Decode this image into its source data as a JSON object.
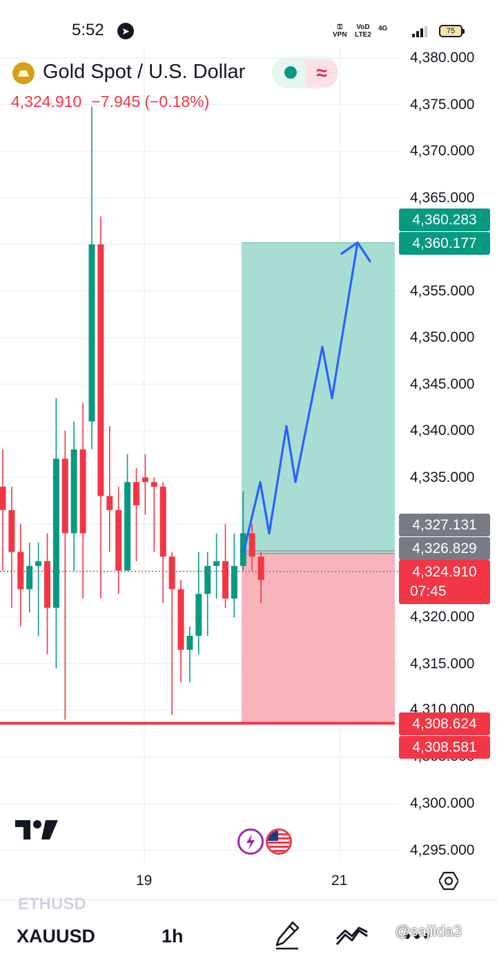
{
  "status_bar": {
    "time": "5:52",
    "indicators": [
      "VPN",
      "VoD LTE2",
      "4G"
    ],
    "battery": "75",
    "icons": [
      "telegram-icon",
      "vpn-key-icon",
      "signal-icon",
      "battery-icon"
    ]
  },
  "header": {
    "title": "Gold Spot / U.S. Dollar",
    "price": "4,324.910",
    "change": "−7.945",
    "change_pct": "(−0.18%)",
    "status_icons": [
      "market-open-dot-icon",
      "delayed-data-wave-icon"
    ]
  },
  "colors": {
    "up": "#089981",
    "down": "#f23645",
    "profit_zone": "#a8ddd4",
    "loss_zone": "#f7b5bb",
    "projection": "#2962ff",
    "gray_label": "#787b86"
  },
  "price_axis": {
    "ticks": [
      "4,380.000",
      "4,375.000",
      "4,370.000",
      "4,365.000",
      "4,355.000",
      "4,350.000",
      "4,345.000",
      "4,340.000",
      "4,335.000",
      "4,320.000",
      "4,315.000",
      "4,300.000",
      "4,295.000"
    ],
    "partial_ticks": [
      "4,310.000",
      "4,305.000"
    ]
  },
  "price_labels": {
    "target_1": "4,360.283",
    "target_2": "4,360.177",
    "entry_1": "4,327.131",
    "entry_2": "4,326.829",
    "last_price": "4,324.910",
    "countdown": "07:45",
    "stop_1": "4,308.624",
    "stop_2": "4,308.581"
  },
  "time_axis": {
    "labels": [
      "19",
      "21"
    ]
  },
  "bottom_bar": {
    "previous_symbol": "ETHUSD",
    "symbol": "XAUUSD",
    "interval": "1h",
    "tools": [
      "draw-pen-icon",
      "indicators-icon",
      "more-icon"
    ],
    "watermark": "@sajiida3"
  },
  "chart_data": {
    "type": "candlestick",
    "symbol": "XAUUSD",
    "interval": "1h",
    "ylim": [
      4292.5,
      4383.0
    ],
    "x_labels": [
      "19",
      "21"
    ],
    "candles": [
      {
        "o": 4334.0,
        "h": 4338.0,
        "l": 4325.0,
        "c": 4331.5
      },
      {
        "o": 4331.5,
        "h": 4334.0,
        "l": 4321.0,
        "c": 4327.0
      },
      {
        "o": 4327.0,
        "h": 4330.0,
        "l": 4319.0,
        "c": 4323.0
      },
      {
        "o": 4323.0,
        "h": 4328.0,
        "l": 4320.5,
        "c": 4325.5
      },
      {
        "o": 4325.5,
        "h": 4328.0,
        "l": 4318.0,
        "c": 4326.0
      },
      {
        "o": 4326.0,
        "h": 4329.0,
        "l": 4316.0,
        "c": 4321.0
      },
      {
        "o": 4321.0,
        "h": 4343.5,
        "l": 4314.5,
        "c": 4337.0
      },
      {
        "o": 4337.0,
        "h": 4340.0,
        "l": 4309.0,
        "c": 4329.0
      },
      {
        "o": 4329.0,
        "h": 4341.0,
        "l": 4325.0,
        "c": 4338.0
      },
      {
        "o": 4338.0,
        "h": 4343.0,
        "l": 4322.0,
        "c": 4329.0
      },
      {
        "o": 4341.0,
        "h": 4374.8,
        "l": 4338.0,
        "c": 4360.0
      },
      {
        "o": 4360.0,
        "h": 4363.0,
        "l": 4322.0,
        "c": 4333.0
      },
      {
        "o": 4333.0,
        "h": 4340.5,
        "l": 4327.0,
        "c": 4331.5
      },
      {
        "o": 4331.5,
        "h": 4334.0,
        "l": 4322.5,
        "c": 4325.0
      },
      {
        "o": 4325.0,
        "h": 4337.5,
        "l": 4325.0,
        "c": 4334.5
      },
      {
        "o": 4334.5,
        "h": 4336.0,
        "l": 4326.0,
        "c": 4332.0
      },
      {
        "o": 4335.0,
        "h": 4337.5,
        "l": 4331.0,
        "c": 4334.5
      },
      {
        "o": 4334.5,
        "h": 4335.0,
        "l": 4327.0,
        "c": 4334.0
      },
      {
        "o": 4334.0,
        "h": 4334.5,
        "l": 4321.5,
        "c": 4326.5
      },
      {
        "o": 4326.5,
        "h": 4327.0,
        "l": 4309.5,
        "c": 4323.0
      },
      {
        "o": 4323.0,
        "h": 4324.0,
        "l": 4313.0,
        "c": 4316.5
      },
      {
        "o": 4316.5,
        "h": 4319.0,
        "l": 4313.0,
        "c": 4318.0
      },
      {
        "o": 4318.0,
        "h": 4327.0,
        "l": 4316.0,
        "c": 4322.5
      },
      {
        "o": 4322.5,
        "h": 4327.0,
        "l": 4318.0,
        "c": 4325.5
      },
      {
        "o": 4325.5,
        "h": 4329.0,
        "l": 4322.0,
        "c": 4326.0
      },
      {
        "o": 4326.0,
        "h": 4330.0,
        "l": 4321.0,
        "c": 4322.0
      },
      {
        "o": 4322.0,
        "h": 4329.0,
        "l": 4320.0,
        "c": 4325.5
      },
      {
        "o": 4325.5,
        "h": 4333.5,
        "l": 4325.0,
        "c": 4329.0
      },
      {
        "o": 4329.0,
        "h": 4330.0,
        "l": 4325.0,
        "c": 4326.5
      },
      {
        "o": 4326.5,
        "h": 4327.0,
        "l": 4321.5,
        "c": 4324.0
      }
    ],
    "position": {
      "type": "long",
      "entry": 4326.829,
      "target": 4360.177,
      "stop": 4308.581
    },
    "horizontal_line": 4308.624,
    "projection_path_prices": [
      4327.0,
      4334.5,
      4329.0,
      4340.5,
      4334.5,
      4349.0,
      4343.5,
      4360.2
    ],
    "projection_arrowhead": true
  }
}
